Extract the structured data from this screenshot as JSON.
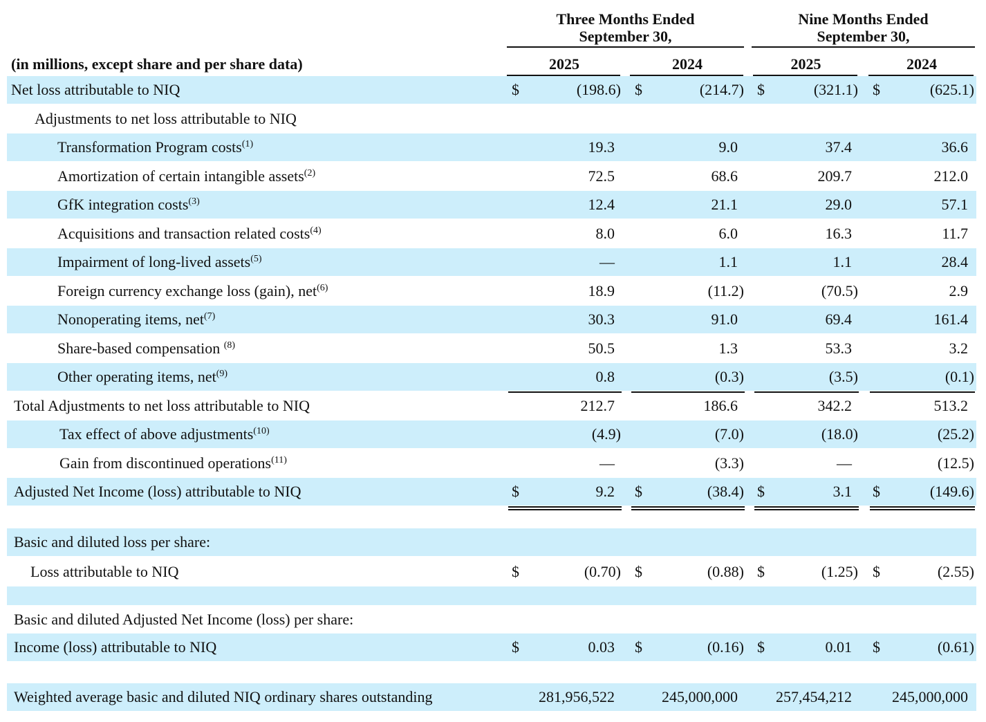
{
  "header": {
    "groups": [
      [
        "Three Months Ended",
        "September 30,"
      ],
      [
        "Nine Months Ended",
        "September 30,"
      ]
    ],
    "caption": "(in millions, except share and per share data)",
    "years": [
      "2025",
      "2024",
      "2025",
      "2024"
    ]
  },
  "table": {
    "rows": [
      {
        "label": "Net loss attributable to NIQ",
        "symbols": [
          "$",
          "$",
          "$",
          "$"
        ],
        "cells": [
          "(198.6)",
          "(214.7)",
          "(321.1)",
          "(625.1)"
        ]
      },
      {
        "label": "Adjustments to net loss attributable to NIQ"
      },
      {
        "label": "Transformation Program costs",
        "note": "(1)",
        "cells": [
          "19.3",
          "9.0",
          "37.4",
          "36.6"
        ]
      },
      {
        "label": "Amortization of certain intangible assets",
        "note": "(2)",
        "cells": [
          "72.5",
          "68.6",
          "209.7",
          "212.0"
        ]
      },
      {
        "label": "GfK integration costs",
        "note": "(3)",
        "cells": [
          "12.4",
          "21.1",
          "29.0",
          "57.1"
        ]
      },
      {
        "label": "Acquisitions and transaction related costs",
        "note": "(4)",
        "cells": [
          "8.0",
          "6.0",
          "16.3",
          "11.7"
        ]
      },
      {
        "label": "Impairment of long-lived assets",
        "note": "(5)",
        "cells": [
          "—",
          "1.1",
          "1.1",
          "28.4"
        ]
      },
      {
        "label": "Foreign currency exchange loss (gain), net",
        "note": "(6)",
        "cells": [
          "18.9",
          "(11.2)",
          "(70.5)",
          "2.9"
        ]
      },
      {
        "label": "Nonoperating items, net",
        "note": "(7)",
        "cells": [
          "30.3",
          "91.0",
          "69.4",
          "161.4"
        ]
      },
      {
        "label": "Share-based compensation ",
        "note": "(8)",
        "cells": [
          "50.5",
          "1.3",
          "53.3",
          "3.2"
        ]
      },
      {
        "label": "Other operating items, net",
        "note": "(9)",
        "cells": [
          "0.8",
          "(0.3)",
          "(3.5)",
          "(0.1)"
        ]
      },
      {
        "label": "Total Adjustments to net loss attributable to NIQ",
        "cells": [
          "212.7",
          "186.6",
          "342.2",
          "513.2"
        ]
      },
      {
        "label": "Tax effect of above adjustments",
        "note": "(10)",
        "cells": [
          "(4.9)",
          "(7.0)",
          "(18.0)",
          "(25.2)"
        ]
      },
      {
        "label": "Gain from discontinued operations",
        "note": "(11)",
        "cells": [
          "—",
          "(3.3)",
          "—",
          "(12.5)"
        ]
      },
      {
        "label": "Adjusted Net Income (loss) attributable to NIQ",
        "symbols": [
          "$",
          "$",
          "$",
          "$"
        ],
        "cells": [
          "9.2",
          "(38.4)",
          "3.1",
          "(149.6)"
        ]
      },
      {
        "label": "Basic and diluted loss per share:"
      },
      {
        "label": "Loss attributable to NIQ",
        "symbols": [
          "$",
          "$",
          "$",
          "$"
        ],
        "cells": [
          "(0.70)",
          "(0.88)",
          "(1.25)",
          "(2.55)"
        ]
      },
      {
        "label": "Basic and diluted Adjusted Net Income (loss) per share:"
      },
      {
        "label": "Income (loss) attributable to NIQ",
        "symbols": [
          "$",
          "$",
          "$",
          "$"
        ],
        "cells": [
          "0.03",
          "(0.16)",
          "0.01",
          "(0.61)"
        ]
      },
      {
        "label": "Weighted average basic and diluted NIQ ordinary shares outstanding",
        "cells": [
          "281,956,522",
          "245,000,000",
          "257,454,212",
          "245,000,000"
        ]
      }
    ]
  }
}
